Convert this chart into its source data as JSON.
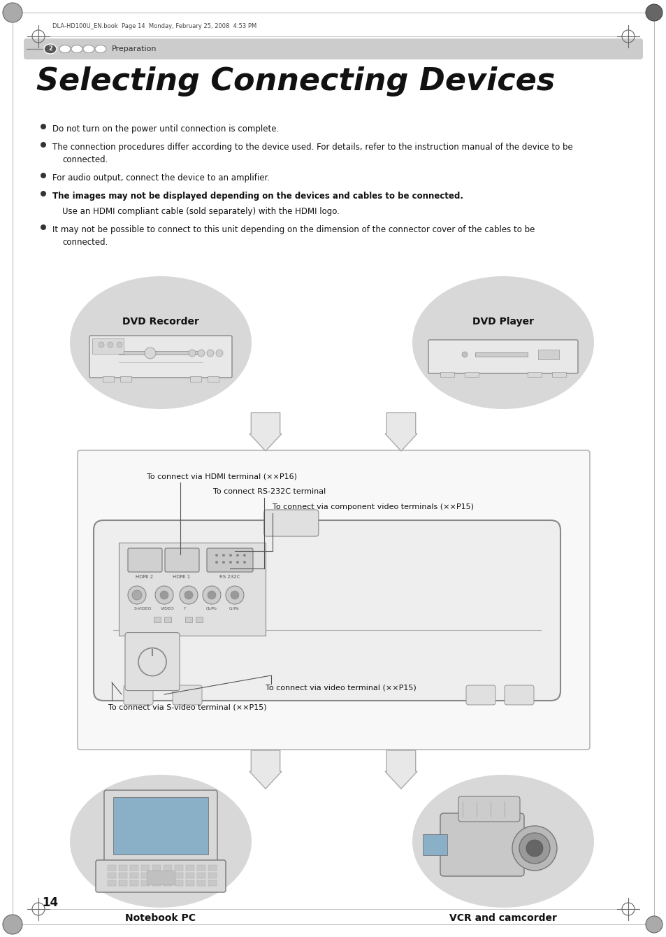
{
  "page_bg": "#ffffff",
  "header_text": "DLA-HD100U_EN.book  Page 14  Monday, February 25, 2008  4:53 PM",
  "nav_text": "Preparation",
  "title": "Selecting Connecting Devices",
  "bullet1": "Do not turn on the power until connection is complete.",
  "bullet2a": "The connection procedures differ according to the device used. For details, refer to the instruction manual of the device to be",
  "bullet2b": "connected.",
  "bullet3": "For audio output, connect the device to an amplifier.",
  "bullet4": "The images may not be displayed depending on the devices and cables to be connected.",
  "bullet4sub": "Use an HDMI compliant cable (sold separately) with the HDMI logo.",
  "bullet5a": "It may not be possible to connect to this unit depending on the dimension of the connector cover of the cables to be",
  "bullet5b": "connected.",
  "label_hdmi": "To connect via HDMI terminal (××P16)",
  "label_rs232": "To connect RS-232C terminal",
  "label_comp": "To connect via component video terminals (××P15)",
  "label_video": "To connect via video terminal (××P15)",
  "label_svideo": "To connect via S-video terminal (××P15)",
  "page_number": "14",
  "ellipse_color": "#d8d8d8",
  "box_bg": "#f8f8f8",
  "proj_body": "#f0f0f0",
  "proj_border": "#888888",
  "arrow_fill": "#e8e8e8",
  "arrow_edge": "#aaaaaa"
}
